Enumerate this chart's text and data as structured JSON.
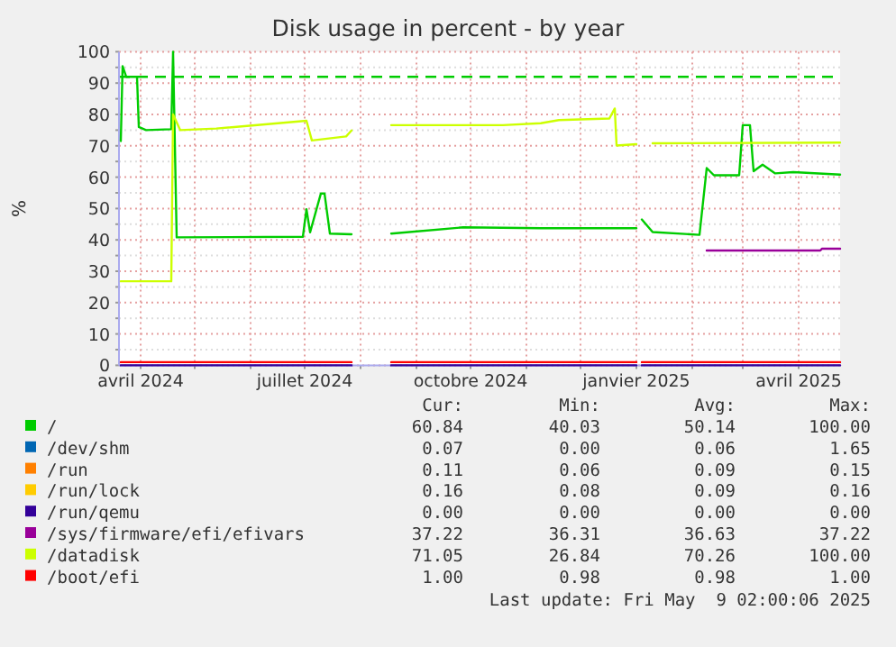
{
  "chart_data": {
    "type": "line",
    "title": "Disk usage in percent - by year",
    "ylabel": "%",
    "xlim": [
      "2024-03-20",
      "2025-04-24"
    ],
    "xticks": [
      {
        "value": "2024-04-01",
        "label": "avril 2024"
      },
      {
        "value": "2024-05-01",
        "label": null
      },
      {
        "value": "2024-06-01",
        "label": null
      },
      {
        "value": "2024-07-01",
        "label": "juillet 2024"
      },
      {
        "value": "2024-08-01",
        "label": null
      },
      {
        "value": "2024-09-01",
        "label": null
      },
      {
        "value": "2024-10-01",
        "label": "octobre 2024"
      },
      {
        "value": "2024-11-01",
        "label": null
      },
      {
        "value": "2024-12-01",
        "label": null
      },
      {
        "value": "2025-01-01",
        "label": "janvier 2025"
      },
      {
        "value": "2025-02-01",
        "label": null
      },
      {
        "value": "2025-03-01",
        "label": null
      },
      {
        "value": "2025-04-01",
        "label": "avril 2025"
      }
    ],
    "ylim": [
      0,
      100
    ],
    "yticks": [
      0,
      {
        "value": 5,
        "label": null
      },
      10,
      {
        "value": 15,
        "label": null
      },
      20,
      {
        "value": 25,
        "label": null
      },
      30,
      {
        "value": 35,
        "label": null
      },
      40,
      {
        "value": 45,
        "label": null
      },
      50,
      {
        "value": 55,
        "label": null
      },
      60,
      {
        "value": 65,
        "label": null
      },
      70,
      {
        "value": 75,
        "label": null
      },
      80,
      {
        "value": 85,
        "label": null
      },
      90,
      {
        "value": 95,
        "label": null
      },
      100
    ],
    "grid": true,
    "legend": "bottom",
    "line_style": "solid",
    "ref_lines": [
      {
        "axis": "y",
        "value": 92,
        "color": "#00cc00",
        "line_style": "dashed"
      }
    ],
    "series": [
      {
        "name": "/",
        "color": "#00cc00",
        "x": [
          "2024-03-21",
          "2024-03-22",
          "2024-03-24",
          "2024-03-30",
          "2024-03-31",
          "2024-04-04",
          "2024-04-18",
          "2024-04-19",
          "2024-04-21",
          "2024-06-30",
          "2024-07-02",
          "2024-07-04",
          "2024-07-10",
          "2024-07-12",
          "2024-07-15",
          "2024-07-27",
          "2024-08-10",
          "2024-08-18",
          "2024-09-27",
          "2024-11-09",
          "2025-01-01",
          "2025-01-02",
          "2025-01-04",
          "2025-01-10",
          "2025-02-05",
          "2025-02-09",
          "2025-02-13",
          "2025-02-27",
          "2025-03-01",
          "2025-03-05",
          "2025-03-07",
          "2025-03-12",
          "2025-03-19",
          "2025-03-29",
          "2025-04-24"
        ],
        "values": [
          71.5,
          95.4,
          92,
          92,
          76,
          75,
          75.3,
          100,
          40.8,
          41,
          49.8,
          42.4,
          54.8,
          54.8,
          42,
          41.8,
          null,
          42,
          44,
          43.7,
          43.7,
          null,
          46.5,
          42.5,
          41.6,
          62.9,
          60.6,
          60.6,
          76.6,
          76.6,
          61.9,
          64,
          61.2,
          61.6,
          60.8
        ]
      },
      {
        "name": "/dev/shm",
        "color": "#0066b3"
      },
      {
        "name": "/run",
        "color": "#ff8000"
      },
      {
        "name": "/run/lock",
        "color": "#ffcc00"
      },
      {
        "name": "/run/qemu",
        "color": "#330099",
        "x": [
          "2024-03-21",
          "2024-07-27",
          "2024-08-10",
          "2024-08-18",
          "2025-01-01",
          "2025-01-02",
          "2025-01-04",
          "2025-04-24"
        ],
        "values": [
          0,
          0,
          null,
          0,
          0,
          null,
          0,
          0
        ]
      },
      {
        "name": "/sys/firmware/efi/efivars",
        "color": "#990099",
        "x": [
          "2025-02-09",
          "2025-04-13",
          "2025-04-14",
          "2025-04-24"
        ],
        "values": [
          36.6,
          36.6,
          37.2,
          37.2
        ]
      },
      {
        "name": "/datadisk",
        "color": "#ccff00",
        "x": [
          "2024-03-21",
          "2024-04-18",
          "2024-04-19",
          "2024-04-23",
          "2024-05-13",
          "2024-07-02",
          "2024-07-05",
          "2024-07-24",
          "2024-07-27",
          "2024-08-10",
          "2024-08-18",
          "2024-10-19",
          "2024-11-09",
          "2024-11-19",
          "2024-12-17",
          "2024-12-20",
          "2024-12-21",
          "2025-01-01",
          "2025-01-02",
          "2025-01-10",
          "2025-04-24"
        ],
        "values": [
          26.8,
          26.8,
          80,
          75,
          75.5,
          78,
          71.7,
          73,
          74.9,
          null,
          76.6,
          76.6,
          77.2,
          78.2,
          78.7,
          81.9,
          70.1,
          70.5,
          null,
          70.8,
          71
        ]
      },
      {
        "name": "/boot/efi",
        "color": "#ff0000",
        "x": [
          "2024-03-21",
          "2024-07-27",
          "2024-08-10",
          "2024-08-18",
          "2025-01-01",
          "2025-01-02",
          "2025-01-04",
          "2025-04-24"
        ],
        "values": [
          1,
          1,
          null,
          1,
          1,
          null,
          1,
          1
        ]
      }
    ],
    "annotations": [
      "Cur:",
      "Min:",
      "Avg:",
      "Max:",
      "60.84",
      "40.03",
      "50.14",
      "100.00",
      "0.07",
      "0.00",
      "0.06",
      "1.65",
      "0.11",
      "0.06",
      "0.09",
      "0.15",
      "0.16",
      "0.08",
      "0.09",
      "0.16",
      "0.00",
      "0.00",
      "0.00",
      "0.00",
      "37.22",
      "36.31",
      "36.63",
      "37.22",
      "71.05",
      "26.84",
      "70.26",
      "100.00",
      "1.00",
      "0.98",
      "0.98",
      "1.00",
      "Last update: Fri May  9 02:00:06 2025"
    ]
  }
}
